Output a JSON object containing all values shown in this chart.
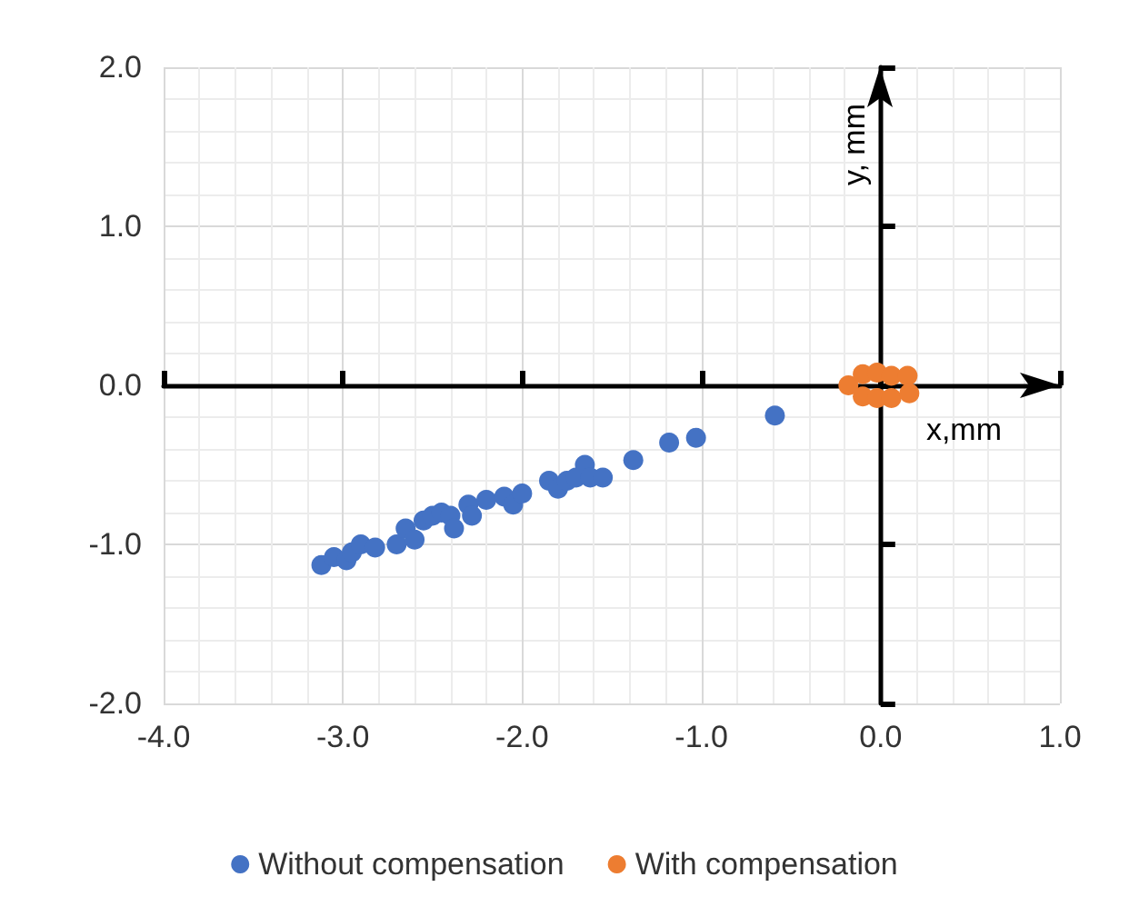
{
  "chart_data": {
    "type": "scatter",
    "xlabel": "x,mm",
    "ylabel": "y, mm",
    "xlim": [
      -4,
      1
    ],
    "ylim": [
      -2,
      2
    ],
    "xticks": [
      {
        "value": -4,
        "label": "-4.0"
      },
      {
        "value": -3,
        "label": "-3.0"
      },
      {
        "value": -2,
        "label": "-2.0"
      },
      {
        "value": -1,
        "label": "-1.0"
      },
      {
        "value": 0,
        "label": "0.0"
      },
      {
        "value": 1,
        "label": "1.0"
      }
    ],
    "yticks": [
      {
        "value": -2,
        "label": "-2.0"
      },
      {
        "value": -1,
        "label": "-1.0"
      },
      {
        "value": 0,
        "label": "0.0"
      },
      {
        "value": 1,
        "label": "1.0"
      },
      {
        "value": 2,
        "label": "2.0"
      }
    ],
    "grid": true,
    "legend": "bottom",
    "marker": "circle",
    "series": [
      {
        "name": "Without compensation",
        "color": "#4472c4",
        "x": [
          -3.12,
          -3.05,
          -2.98,
          -2.95,
          -2.9,
          -2.82,
          -2.7,
          -2.65,
          -2.6,
          -2.55,
          -2.5,
          -2.45,
          -2.4,
          -2.38,
          -2.3,
          -2.28,
          -2.2,
          -2.1,
          -2.05,
          -2.0,
          -1.85,
          -1.8,
          -1.75,
          -1.7,
          -1.65,
          -1.62,
          -1.55,
          -1.38,
          -1.18,
          -1.03,
          -0.59
        ],
        "values": [
          -1.13,
          -1.08,
          -1.1,
          -1.05,
          -1.0,
          -1.02,
          -1.0,
          -0.9,
          -0.97,
          -0.85,
          -0.82,
          -0.8,
          -0.82,
          -0.9,
          -0.75,
          -0.82,
          -0.72,
          -0.7,
          -0.75,
          -0.68,
          -0.6,
          -0.65,
          -0.6,
          -0.58,
          -0.5,
          -0.58,
          -0.58,
          -0.47,
          -0.36,
          -0.33,
          -0.19
        ]
      },
      {
        "name": "With compensation",
        "color": "#ed7d31",
        "x": [
          -0.18,
          -0.1,
          -0.1,
          -0.02,
          -0.02,
          0.06,
          0.06,
          0.15,
          0.16
        ],
        "values": [
          0.0,
          0.07,
          -0.07,
          0.08,
          -0.08,
          0.06,
          -0.08,
          0.06,
          -0.05
        ]
      }
    ]
  }
}
